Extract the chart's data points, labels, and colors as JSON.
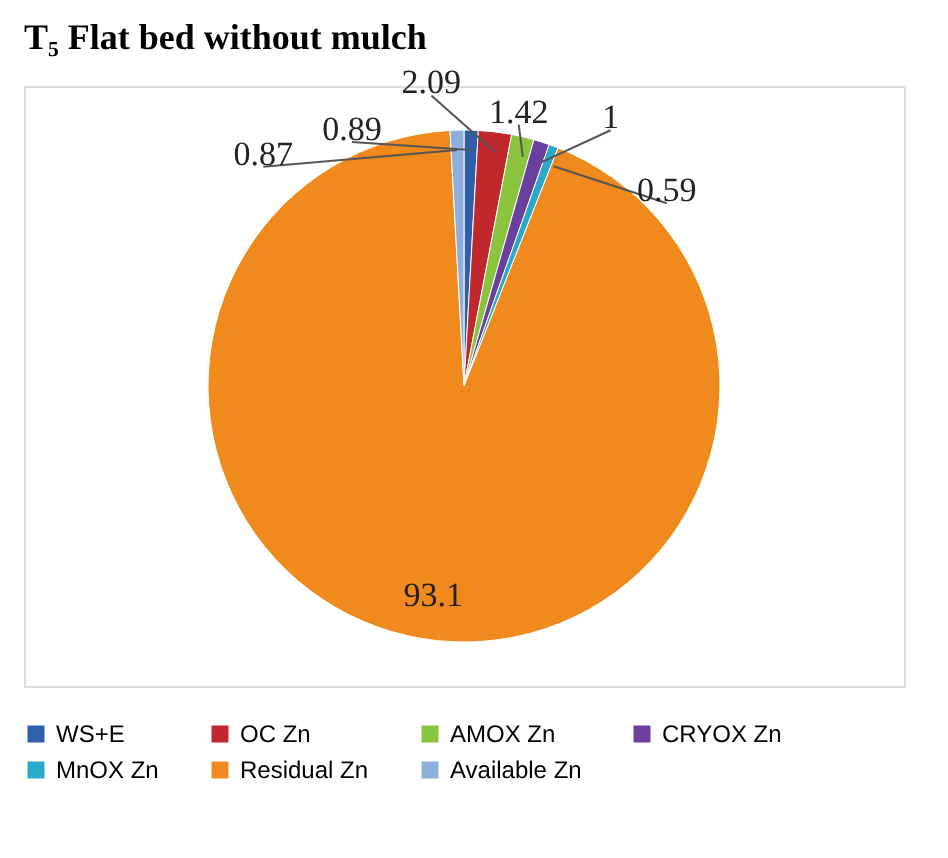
{
  "chart_data": {
    "type": "pie",
    "title": "T₅  Flat bed without mulch",
    "categories": [
      "WS+E",
      "OC Zn",
      "AMOX Zn",
      "CRYOX Zn",
      "MnOX Zn",
      "Residual Zn",
      "Available Zn"
    ],
    "values": [
      0.89,
      2.09,
      1.42,
      1,
      0.59,
      93.1,
      0.87
    ],
    "colors": [
      "#2e5fa8",
      "#c0282d",
      "#8ac43f",
      "#6b3fa0",
      "#29a9c9",
      "#f08a1c",
      "#8eaedc"
    ],
    "data_labels": true,
    "legend": "bottom"
  }
}
